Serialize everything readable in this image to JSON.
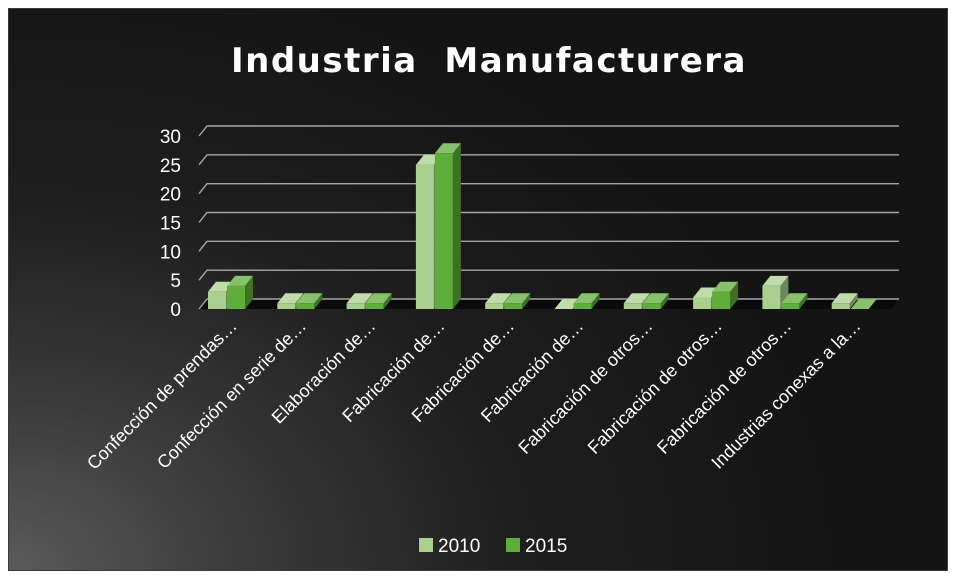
{
  "chart_data": {
    "type": "bar",
    "title": "Industria  Manufacturera",
    "categories": [
      "Confección de prendas…",
      "Confección en serie de…",
      "Elaboración de…",
      "Fabricación de…",
      "Fabricación de…",
      "Fabricación de…",
      "Fabricación de otros…",
      "Fabricación de otros…",
      "Fabricación de otros…",
      "Industrias conexas a la…"
    ],
    "series": [
      {
        "name": "2010",
        "values": [
          3,
          1,
          1,
          25,
          1,
          0,
          1,
          2,
          4,
          1
        ]
      },
      {
        "name": "2015",
        "values": [
          4,
          1,
          1,
          27,
          1,
          1,
          1,
          3,
          1,
          0
        ]
      }
    ],
    "yticks": [
      "0",
      "5",
      "10",
      "15",
      "20",
      "25",
      "30"
    ],
    "ylim": [
      0,
      30
    ],
    "grid": true,
    "legend_position": "bottom",
    "colors": {
      "2010": "#a9d08e",
      "2015": "#5fae3a",
      "grid": "#a6a6a6"
    }
  }
}
